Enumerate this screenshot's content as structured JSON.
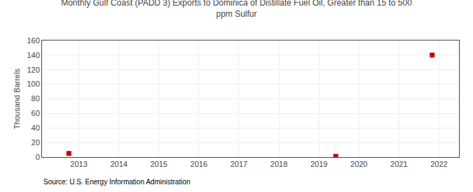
{
  "chart_data": {
    "type": "scatter",
    "title": "Monthly Gulf Coast (PADD 3) Exports to Dominica of Distillate Fuel Oil, Greater than 15 to 500\nppm Sulfur",
    "ylabel": "Thousand Barrels",
    "annotations": [
      "Source: U.S. Energy Information Administration"
    ],
    "x": [
      2012.75,
      2019.42,
      2021.83
    ],
    "values": [
      5,
      1,
      140
    ],
    "color": "#cc0000",
    "marker": "square",
    "xlim": [
      2012.08,
      2022.5
    ],
    "ylim": [
      0,
      160
    ],
    "xticks": [
      2013,
      2014,
      2015,
      2016,
      2017,
      2018,
      2019,
      2020,
      2021,
      2022
    ],
    "yticks": [
      0,
      20,
      40,
      60,
      80,
      100,
      120,
      140,
      160
    ],
    "grid": true
  }
}
